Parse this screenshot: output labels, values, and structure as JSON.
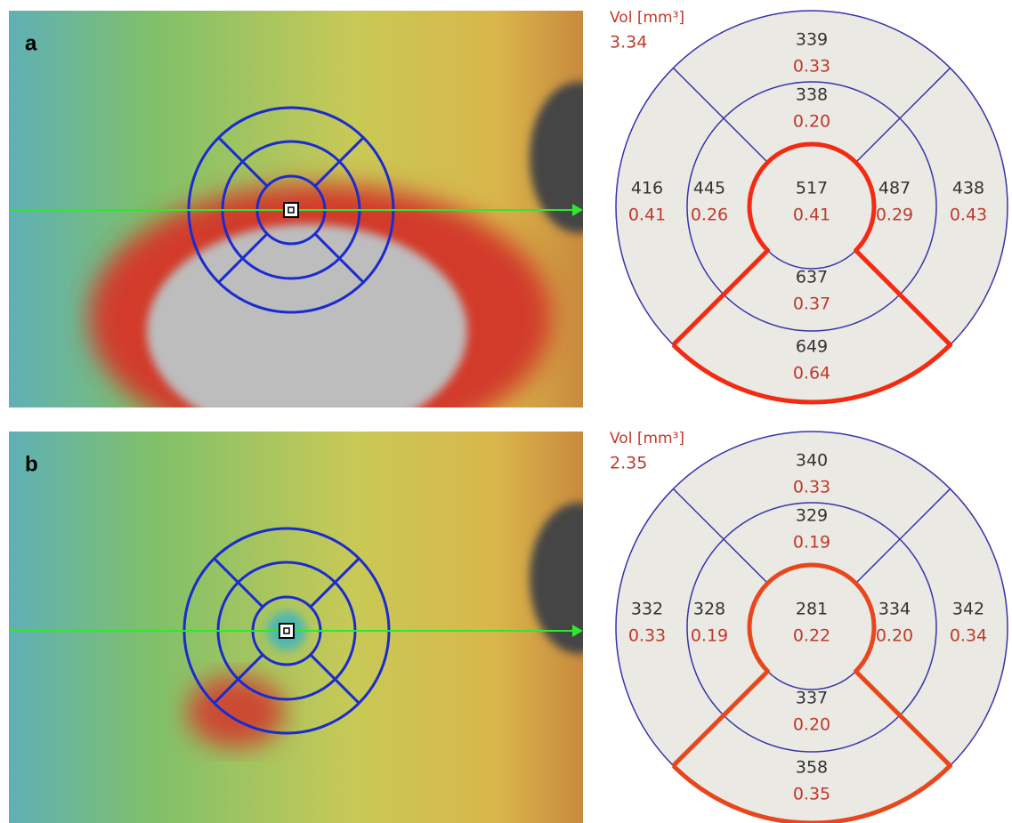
{
  "panels": [
    {
      "label": "a",
      "vol_label": "Vol [mm³]",
      "total_volume": "3.34",
      "sectors": [
        {
          "thickness": "517",
          "volume": "0.41"
        },
        {
          "thickness": "338",
          "volume": "0.20"
        },
        {
          "thickness": "487",
          "volume": "0.29"
        },
        {
          "thickness": "637",
          "volume": "0.37"
        },
        {
          "thickness": "445",
          "volume": "0.26"
        },
        {
          "thickness": "339",
          "volume": "0.33"
        },
        {
          "thickness": "438",
          "volume": "0.43"
        },
        {
          "thickness": "649",
          "volume": "0.64"
        },
        {
          "thickness": "416",
          "volume": "0.41"
        }
      ]
    },
    {
      "label": "b",
      "vol_label": "Vol [mm³]",
      "total_volume": "2.35",
      "sectors": [
        {
          "thickness": "281",
          "volume": "0.22"
        },
        {
          "thickness": "329",
          "volume": "0.19"
        },
        {
          "thickness": "334",
          "volume": "0.20"
        },
        {
          "thickness": "337",
          "volume": "0.20"
        },
        {
          "thickness": "328",
          "volume": "0.19"
        },
        {
          "thickness": "340",
          "volume": "0.33"
        },
        {
          "thickness": "342",
          "volume": "0.34"
        },
        {
          "thickness": "358",
          "volume": "0.35"
        },
        {
          "thickness": "332",
          "volume": "0.33"
        }
      ]
    }
  ]
}
